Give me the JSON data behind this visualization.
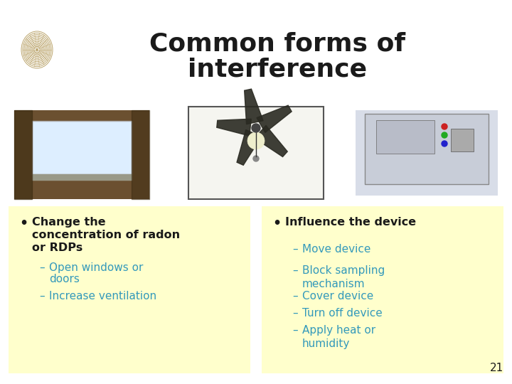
{
  "title_line1": "Common forms of",
  "title_line2": "interference",
  "title_color": "#1a1a1a",
  "title_fontsize": 26,
  "title_fontweight": "bold",
  "background_color": "#ffffff",
  "bullet_box_color": "#ffffcc",
  "left_bullet_header_line1": "Change the",
  "left_bullet_header_line2": "concentration of radon",
  "left_bullet_header_line3": "or RDPs",
  "left_sub_bullets": [
    "Open windows or\ndoors",
    "Increase ventilation"
  ],
  "right_bullet_header": "Influence the device",
  "right_sub_bullets": [
    "Move device",
    "Block sampling\nmechanism",
    "Cover device",
    "Turn off device",
    "Apply heat or\nhumidity"
  ],
  "text_color_dark": "#1a1a1a",
  "text_color_blue": "#3399bb",
  "bullet_fontsize": 11.5,
  "sub_bullet_fontsize": 11,
  "slide_number": "21",
  "logo_color": "#a08030",
  "img1_color": "#6b5030",
  "img2_color": "#e8e8e8",
  "img3_color": "#d8dde8"
}
